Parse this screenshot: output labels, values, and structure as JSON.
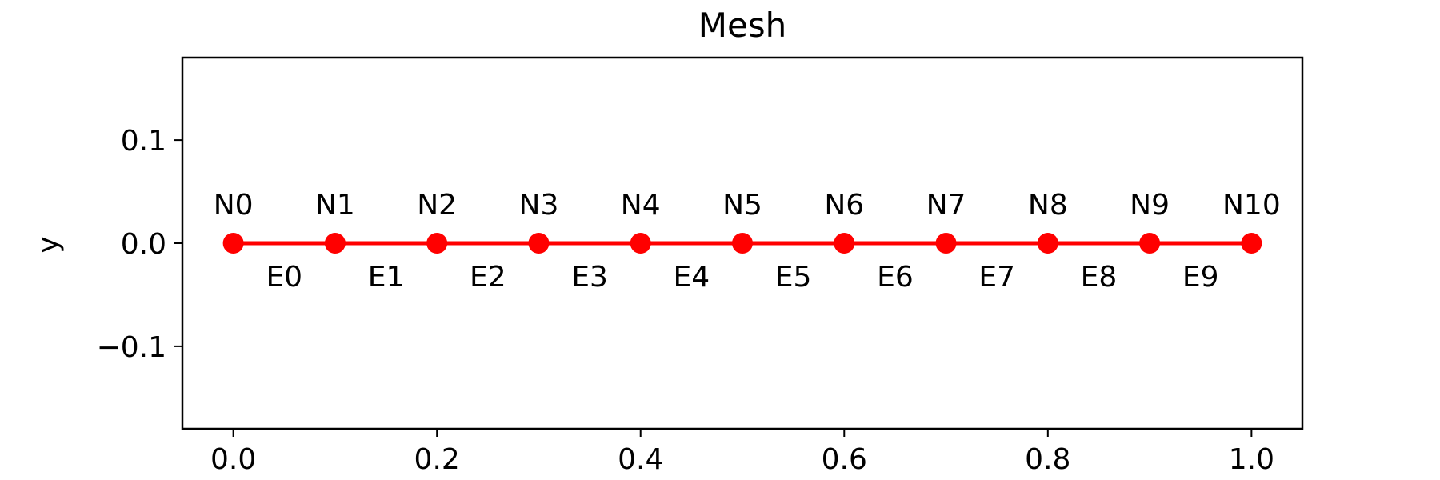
{
  "chart_data": {
    "type": "line",
    "title": "Mesh",
    "xlabel": "",
    "ylabel": "y",
    "xlim": [
      -0.05,
      1.05
    ],
    "ylim": [
      -0.18,
      0.18
    ],
    "xticks": [
      0.0,
      0.2,
      0.4,
      0.6,
      0.8,
      1.0
    ],
    "xtick_labels": [
      "0.0",
      "0.2",
      "0.4",
      "0.6",
      "0.8",
      "1.0"
    ],
    "yticks": [
      -0.1,
      0.0,
      0.1
    ],
    "ytick_labels": [
      "−0.1",
      "0.0",
      "0.1"
    ],
    "grid": false,
    "legend": "none",
    "line_color": "#ff0000",
    "marker_color": "#ff0000",
    "nodes": [
      {
        "label": "N0",
        "x": 0.0,
        "y": 0.0
      },
      {
        "label": "N1",
        "x": 0.1,
        "y": 0.0
      },
      {
        "label": "N2",
        "x": 0.2,
        "y": 0.0
      },
      {
        "label": "N3",
        "x": 0.3,
        "y": 0.0
      },
      {
        "label": "N4",
        "x": 0.4,
        "y": 0.0
      },
      {
        "label": "N5",
        "x": 0.5,
        "y": 0.0
      },
      {
        "label": "N6",
        "x": 0.6,
        "y": 0.0
      },
      {
        "label": "N7",
        "x": 0.7,
        "y": 0.0
      },
      {
        "label": "N8",
        "x": 0.8,
        "y": 0.0
      },
      {
        "label": "N9",
        "x": 0.9,
        "y": 0.0
      },
      {
        "label": "N10",
        "x": 1.0,
        "y": 0.0
      }
    ],
    "elements": [
      {
        "label": "E0",
        "from": 0,
        "to": 1
      },
      {
        "label": "E1",
        "from": 1,
        "to": 2
      },
      {
        "label": "E2",
        "from": 2,
        "to": 3
      },
      {
        "label": "E3",
        "from": 3,
        "to": 4
      },
      {
        "label": "E4",
        "from": 4,
        "to": 5
      },
      {
        "label": "E5",
        "from": 5,
        "to": 6
      },
      {
        "label": "E6",
        "from": 6,
        "to": 7
      },
      {
        "label": "E7",
        "from": 7,
        "to": 8
      },
      {
        "label": "E8",
        "from": 8,
        "to": 9
      },
      {
        "label": "E9",
        "from": 9,
        "to": 10
      }
    ]
  }
}
